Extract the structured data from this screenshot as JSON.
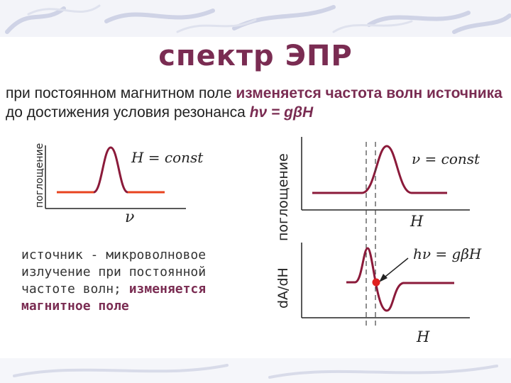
{
  "slide": {
    "title": "спектр ЭПР",
    "intro": {
      "part1": "при постоянном магнитном поле ",
      "part2": "изменяется частота волн источника",
      "part3": " до достижения условия резонанса ",
      "formula": "hν = gβH"
    },
    "left_plot": {
      "ylabel": "поглощение",
      "annotation": "H = const",
      "xlabel": "ν"
    },
    "left_caption": {
      "part1": "источник - микроволновое излучение при постоянной частоте волн; ",
      "part2": "изменяется магнитное поле"
    },
    "right_top_plot": {
      "ylabel": "поглощение",
      "annotation": "ν = const",
      "xlabel": "H"
    },
    "right_bottom_plot": {
      "ylabel": "dA/dH",
      "annotation": "hν = gβH",
      "xlabel": "H"
    },
    "colors": {
      "title": "#7a2c52",
      "curve": "#8b1a3a",
      "baseline": "#e8431e",
      "marker": "#e0201e",
      "decor": "#cfd3e6"
    }
  }
}
